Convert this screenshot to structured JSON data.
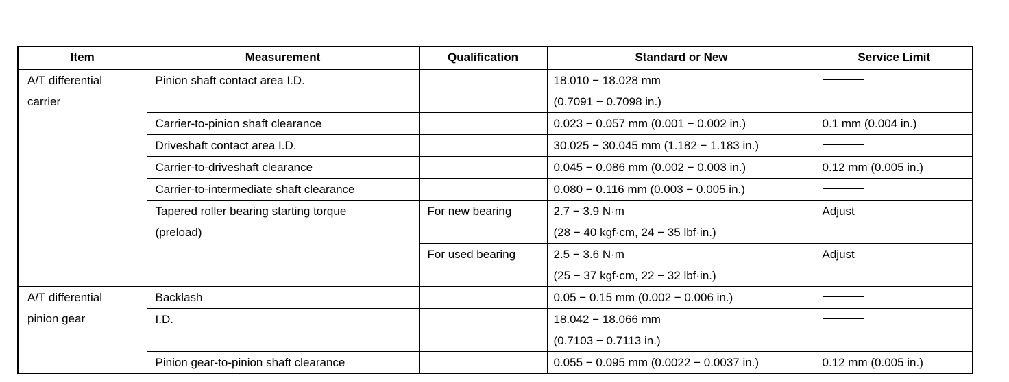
{
  "headers": [
    "Item",
    "Measurement",
    "Qualification",
    "Standard or New",
    "Service Limit"
  ],
  "dash": "—",
  "groups": [
    {
      "item": [
        "A/T differential",
        "carrier"
      ]
    },
    {
      "item": [
        "A/T differential",
        "pinion gear"
      ]
    }
  ],
  "rows": [
    {
      "measurement": [
        "Pinion shaft contact area I.D."
      ],
      "qualification": "",
      "standard": [
        "18.010 − 18.028 mm",
        "(0.7091 − 0.7098 in.)"
      ],
      "limit": "—"
    },
    {
      "measurement": [
        "Carrier-to-pinion shaft clearance"
      ],
      "qualification": "",
      "standard": [
        "0.023 − 0.057 mm (0.001 − 0.002 in.)"
      ],
      "limit": "0.1 mm (0.004 in.)"
    },
    {
      "measurement": [
        "Driveshaft contact area I.D."
      ],
      "qualification": "",
      "standard": [
        "30.025 − 30.045 mm (1.182 − 1.183 in.)"
      ],
      "limit": "—"
    },
    {
      "measurement": [
        "Carrier-to-driveshaft clearance"
      ],
      "qualification": "",
      "standard": [
        "0.045 − 0.086 mm (0.002 − 0.003 in.)"
      ],
      "limit": "0.12 mm (0.005 in.)"
    },
    {
      "measurement": [
        "Carrier-to-intermediate shaft clearance"
      ],
      "qualification": "",
      "standard": [
        "0.080 − 0.116 mm (0.003 − 0.005 in.)"
      ],
      "limit": "—"
    },
    {
      "measurement": [
        "Tapered roller bearing starting torque",
        "(preload)"
      ],
      "qualification": "For new bearing",
      "standard": [
        "2.7 − 3.9 N·m",
        "(28 − 40 kgf·cm, 24 − 35 lbf·in.)"
      ],
      "limit": "Adjust"
    },
    {
      "qualification": "For used bearing",
      "standard": [
        "2.5 − 3.6 N·m",
        "(25 − 37 kgf·cm, 22 − 32 lbf·in.)"
      ],
      "limit": "Adjust"
    },
    {
      "measurement": [
        "Backlash"
      ],
      "qualification": "",
      "standard": [
        "0.05 − 0.15 mm (0.002 − 0.006 in.)"
      ],
      "limit": "—"
    },
    {
      "measurement": [
        "I.D."
      ],
      "qualification": "",
      "standard": [
        "18.042 − 18.066 mm",
        "(0.7103 − 0.7113 in.)"
      ],
      "limit": "—"
    },
    {
      "measurement": [
        "Pinion gear-to-pinion shaft clearance"
      ],
      "qualification": "",
      "standard": [
        "0.055 − 0.095 mm (0.0022 − 0.0037 in.)"
      ],
      "limit": "0.12 mm (0.005 in.)"
    }
  ]
}
